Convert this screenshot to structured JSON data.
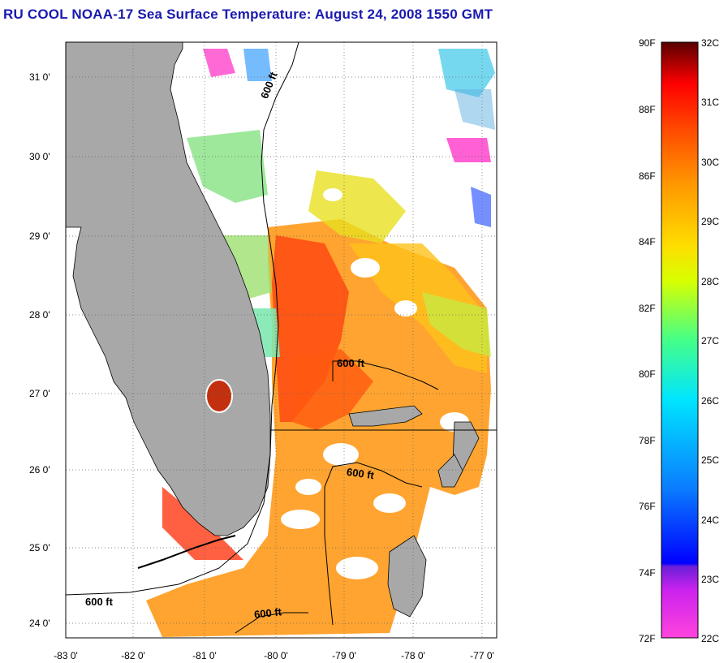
{
  "title": "RU COOL  NOAA-17  Sea Surface Temperature:  August 24, 2008 1550 GMT",
  "map": {
    "lon_range": [
      -83,
      -77
    ],
    "lat_range": [
      23.8,
      31.4
    ],
    "y_ticks": [
      "31 0'",
      "30 0'",
      "29 0'",
      "28 0'",
      "27 0'",
      "26 0'",
      "25 0'",
      "24 0'"
    ],
    "x_ticks": [
      "-83 0'",
      "-82 0'",
      "-81 0'",
      "-80 0'",
      "-79 0'",
      "-78 0'",
      "-77 0'"
    ],
    "contour_labels": [
      "600 ft",
      "600 ft",
      "600 ft",
      "600 ft",
      "600 ft"
    ],
    "land_color": "#a8a8a8",
    "grid": "dotted"
  },
  "colorbar": {
    "f_labels": [
      "90F",
      "88F",
      "86F",
      "84F",
      "82F",
      "80F",
      "78F",
      "76F",
      "74F",
      "72F"
    ],
    "c_labels": [
      "32C",
      "31C",
      "30C",
      "29C",
      "28C",
      "27C",
      "26C",
      "25C",
      "24C",
      "23C",
      "22C"
    ],
    "range_f": [
      72,
      90
    ],
    "range_c": [
      22,
      32
    ],
    "colors": [
      "#ff44dd",
      "#cc22ee",
      "#6a1fd8",
      "#0000ff",
      "#0a7cff",
      "#00e5ff",
      "#44ff88",
      "#d8ff00",
      "#ffdd00",
      "#ff9900",
      "#ff4400",
      "#ff0000",
      "#5a0000"
    ]
  }
}
